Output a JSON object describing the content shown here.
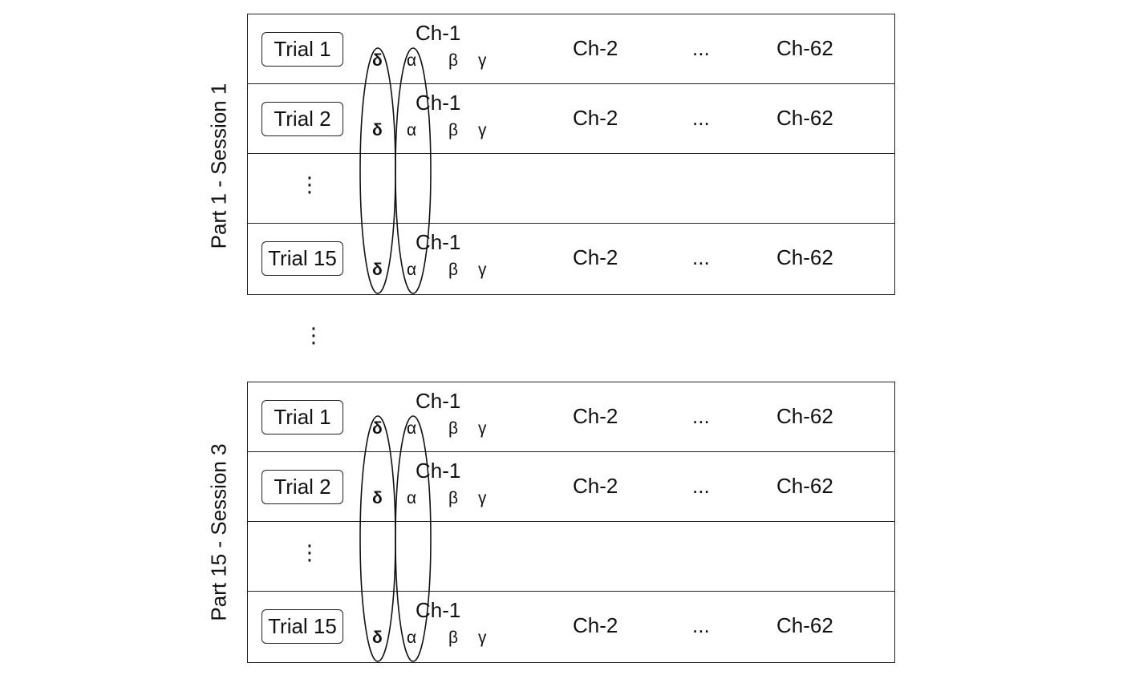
{
  "blocks": [
    {
      "label": "Part 1 - Session 1",
      "rows": [
        {
          "trial": "Trial 1",
          "ch1": "Ch-1",
          "bands": [
            "δ",
            "α",
            "β",
            "γ"
          ],
          "ch2": "Ch-2",
          "dots": "...",
          "ch62": "Ch-62"
        },
        {
          "trial": "Trial 2",
          "ch1": "Ch-1",
          "bands": [
            "δ",
            "α",
            "β",
            "γ"
          ],
          "ch2": "Ch-2",
          "dots": "...",
          "ch62": "Ch-62"
        },
        {
          "ellipsis": "⋮"
        },
        {
          "trial": "Trial 15",
          "ch1": "Ch-1",
          "bands": [
            "δ",
            "α",
            "β",
            "γ"
          ],
          "ch2": "Ch-2",
          "dots": "...",
          "ch62": "Ch-62"
        }
      ]
    },
    {
      "label": "Part 15 - Session 3",
      "rows": [
        {
          "trial": "Trial 1",
          "ch1": "Ch-1",
          "bands": [
            "δ",
            "α",
            "β",
            "γ"
          ],
          "ch2": "Ch-2",
          "dots": "...",
          "ch62": "Ch-62"
        },
        {
          "trial": "Trial 2",
          "ch1": "Ch-1",
          "bands": [
            "δ",
            "α",
            "β",
            "γ"
          ],
          "ch2": "Ch-2",
          "dots": "...",
          "ch62": "Ch-62"
        },
        {
          "ellipsis": "⋮"
        },
        {
          "trial": "Trial 15",
          "ch1": "Ch-1",
          "bands": [
            "δ",
            "α",
            "β",
            "γ"
          ],
          "ch2": "Ch-2",
          "dots": "...",
          "ch62": "Ch-62"
        }
      ]
    }
  ],
  "between_blocks": "⋮"
}
